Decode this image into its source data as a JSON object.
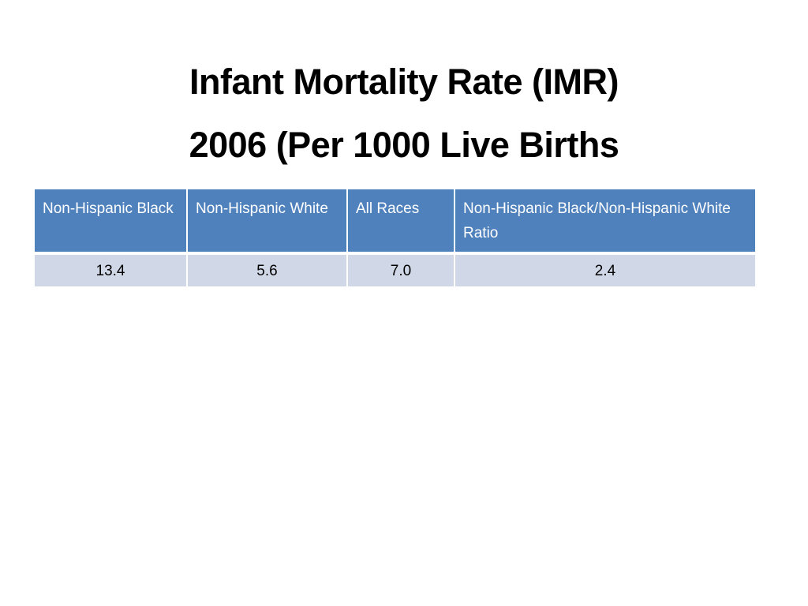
{
  "title": {
    "line1": "Infant Mortality Rate (IMR)",
    "line2": "2006 (Per 1000 Live Births"
  },
  "table": {
    "headers": [
      "Non-Hispanic Black",
      "Non-Hispanic White",
      "All Races",
      "Non-Hispanic Black/Non-Hispanic White Ratio"
    ],
    "rows": [
      [
        "13.4",
        "5.6",
        "7.0",
        "2.4"
      ]
    ]
  },
  "colors": {
    "header_bg": "#4f81bd",
    "row_bg": "#d0d8e8",
    "header_text": "#ffffff"
  }
}
